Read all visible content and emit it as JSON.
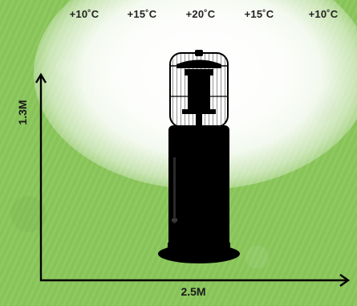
{
  "temperature_scale": {
    "labels": [
      "+10˚C",
      "+15˚C",
      "+20˚C",
      "+15˚C",
      "+10˚C"
    ]
  },
  "dimensions": {
    "height_label": "1.3M",
    "width_label": "2.5M"
  },
  "colors": {
    "background": "#8bc85c",
    "heat_glow": "#ffffff",
    "heater": "#000000",
    "axis": "#000000"
  },
  "icons": {
    "heater": "patio-heater-icon"
  }
}
